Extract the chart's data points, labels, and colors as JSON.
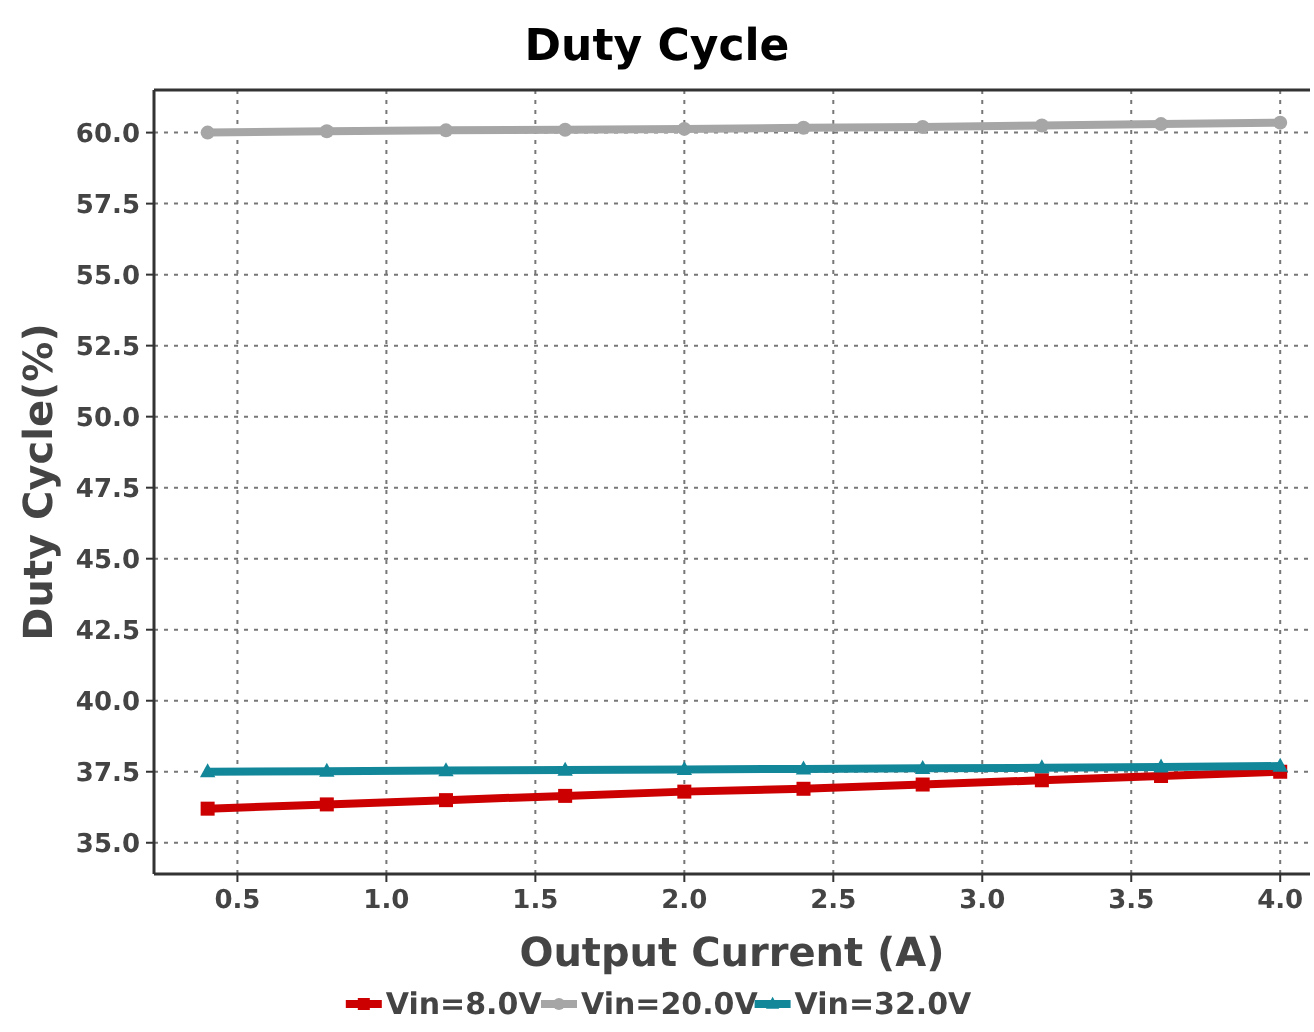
{
  "chart_data": {
    "type": "line",
    "title": "Duty Cycle",
    "xlabel": "Output Current (A)",
    "ylabel": "Duty Cycle(%)",
    "x": [
      0.4,
      0.8,
      1.2,
      1.6,
      2.0,
      2.4,
      2.8,
      3.2,
      3.6,
      4.0
    ],
    "xlim": [
      0.22,
      4.1
    ],
    "xticks": [
      {
        "value": 0.5,
        "label": "0.5"
      },
      {
        "value": 1,
        "label": "1.0"
      },
      {
        "value": 1.5,
        "label": "1.5"
      },
      {
        "value": 2,
        "label": "2.0"
      },
      {
        "value": 2.5,
        "label": "2.5"
      },
      {
        "value": 3,
        "label": "3.0"
      },
      {
        "value": 3.5,
        "label": "3.5"
      },
      {
        "value": 4,
        "label": "4.0"
      }
    ],
    "ylim": [
      33.9,
      61.5
    ],
    "yticks": [
      {
        "value": 35,
        "label": "35.0"
      },
      {
        "value": 37.5,
        "label": "37.5"
      },
      {
        "value": 40,
        "label": "40.0"
      },
      {
        "value": 42.5,
        "label": "42.5"
      },
      {
        "value": 45,
        "label": "45.0"
      },
      {
        "value": 47.5,
        "label": "47.5"
      },
      {
        "value": 50,
        "label": "50.0"
      },
      {
        "value": 52.5,
        "label": "52.5"
      },
      {
        "value": 55,
        "label": "55.0"
      },
      {
        "value": 57.5,
        "label": "57.5"
      },
      {
        "value": 60,
        "label": "60.0"
      }
    ],
    "grid": true,
    "legend": "bottom",
    "line_style": "solid",
    "series": [
      {
        "name": "Vin=8.0V",
        "color": "#cc0000",
        "marker": "square",
        "values": [
          36.2,
          36.35,
          36.5,
          36.65,
          36.8,
          36.9,
          37.05,
          37.2,
          37.35,
          37.5
        ]
      },
      {
        "name": "Vin=20.0V",
        "color": "#a6a6a6",
        "marker": "circle",
        "values": [
          60.0,
          60.05,
          60.08,
          60.1,
          60.13,
          60.17,
          60.2,
          60.25,
          60.3,
          60.35
        ]
      },
      {
        "name": "Vin=32.0V",
        "color": "#13879a",
        "marker": "triangle",
        "values": [
          37.5,
          37.52,
          37.54,
          37.56,
          37.58,
          37.6,
          37.62,
          37.64,
          37.67,
          37.7
        ]
      }
    ]
  }
}
